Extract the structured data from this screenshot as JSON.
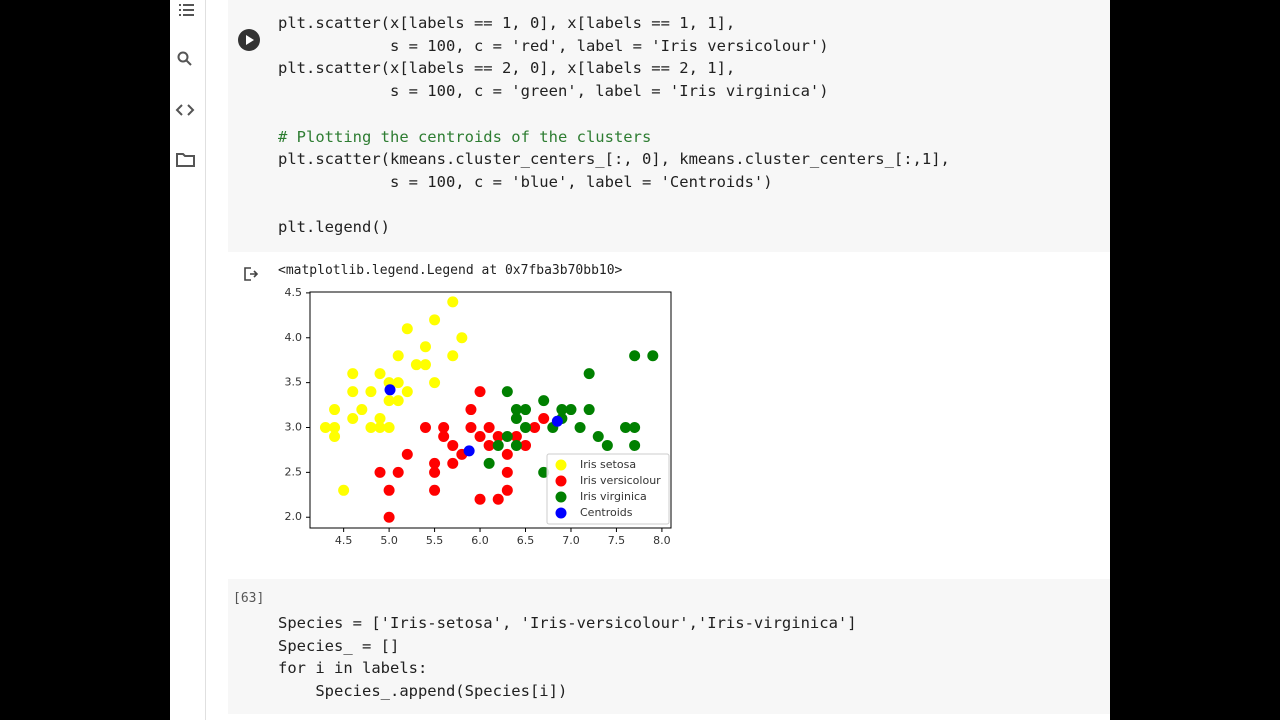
{
  "cells": [
    {
      "code_groups": [
        [
          "plt.scatter(x[labels == 1, 0], x[labels == 1, 1],",
          "            s = 100, c = 'red', label = 'Iris versicolour')",
          "plt.scatter(x[labels == 2, 0], x[labels == 2, 1],",
          "            s = 100, c = 'green', label = 'Iris virginica')"
        ],
        [
          "# Plotting the centroids of the clusters",
          "plt.scatter(kmeans.cluster_centers_[:, 0], kmeans.cluster_centers_[:,1],",
          "            s = 100, c = 'blue', label = 'Centroids')"
        ],
        [
          "plt.legend()"
        ]
      ]
    },
    {
      "exec_count": "[63]",
      "code_groups": [
        [
          "Species = ['Iris-setosa', 'Iris-versicolour','Iris-virginica']",
          "Species_ = []",
          "for i in labels:",
          "    Species_.append(Species[i])"
        ]
      ]
    }
  ],
  "output_text": "<matplotlib.legend.Legend at 0x7fba3b70bb10>",
  "chart_data": {
    "type": "scatter",
    "xlim": [
      4.13,
      8.1
    ],
    "ylim": [
      1.88,
      4.51
    ],
    "xticks": [
      4.5,
      {
        "value": 5.0,
        "label": "5.0"
      },
      5.5,
      {
        "value": 6.0,
        "label": "6.0"
      },
      6.5,
      {
        "value": 7.0,
        "label": "7.0"
      },
      7.5,
      {
        "value": 8.0,
        "label": "8.0"
      }
    ],
    "yticks": [
      {
        "value": 2.0,
        "label": "2.0"
      },
      2.5,
      {
        "value": 3.0,
        "label": "3.0"
      },
      3.5,
      {
        "value": 4.0,
        "label": "4.0"
      },
      4.5
    ],
    "legend": "lower right",
    "series": [
      {
        "name": "Iris setosa",
        "color": "#ffff00",
        "x": [
          4.4,
          4.3,
          4.4,
          4.4,
          4.5,
          4.6,
          4.6,
          4.6,
          4.7,
          4.8,
          4.8,
          4.9,
          4.9,
          5.0,
          5.0,
          5.0,
          5.1,
          5.1,
          5.2,
          5.2,
          5.3,
          5.4,
          5.4,
          5.5,
          5.5,
          5.7,
          5.7,
          5.8,
          5.1,
          4.9
        ],
        "values": [
          3.0,
          3.0,
          2.9,
          3.2,
          2.3,
          3.1,
          3.4,
          3.6,
          3.2,
          3.0,
          3.4,
          3.0,
          3.1,
          3.0,
          3.3,
          3.5,
          3.5,
          3.8,
          3.4,
          4.1,
          3.7,
          3.9,
          3.7,
          4.2,
          3.5,
          3.8,
          4.4,
          4.0,
          3.3,
          3.6
        ]
      },
      {
        "name": "Iris versicolour",
        "color": "#ff0000",
        "x": [
          4.9,
          5.0,
          5.0,
          5.1,
          5.2,
          5.4,
          5.5,
          5.5,
          5.5,
          5.6,
          5.6,
          5.7,
          5.7,
          5.8,
          5.9,
          6.0,
          6.0,
          6.0,
          6.1,
          6.1,
          6.2,
          6.2,
          6.3,
          6.3,
          6.4,
          6.5,
          6.6,
          6.7,
          5.9,
          6.3
        ],
        "values": [
          2.5,
          2.0,
          2.3,
          2.5,
          2.7,
          3.0,
          2.3,
          2.5,
          2.6,
          2.9,
          3.0,
          2.8,
          2.6,
          2.7,
          3.0,
          2.2,
          2.9,
          3.4,
          2.8,
          3.0,
          2.2,
          2.9,
          2.5,
          2.3,
          2.9,
          2.8,
          3.0,
          3.1,
          3.2,
          2.7
        ]
      },
      {
        "name": "Iris virginica",
        "color": "#008000",
        "x": [
          6.1,
          6.3,
          6.4,
          6.4,
          6.5,
          6.5,
          6.7,
          6.7,
          6.8,
          6.9,
          7.0,
          7.1,
          7.2,
          7.2,
          7.3,
          7.4,
          7.6,
          7.7,
          7.7,
          7.7,
          7.9,
          6.3,
          6.2,
          6.4,
          6.9
        ],
        "values": [
          2.6,
          3.4,
          3.2,
          2.8,
          3.0,
          3.2,
          2.5,
          3.3,
          3.0,
          3.2,
          3.2,
          3.0,
          3.6,
          3.2,
          2.9,
          2.8,
          3.0,
          3.8,
          2.8,
          3.0,
          3.8,
          2.9,
          2.8,
          3.1,
          3.1
        ]
      },
      {
        "name": "Centroids",
        "color": "#0000ff",
        "x": [
          5.01,
          5.88,
          6.85
        ],
        "values": [
          3.42,
          2.74,
          3.07
        ]
      }
    ]
  }
}
